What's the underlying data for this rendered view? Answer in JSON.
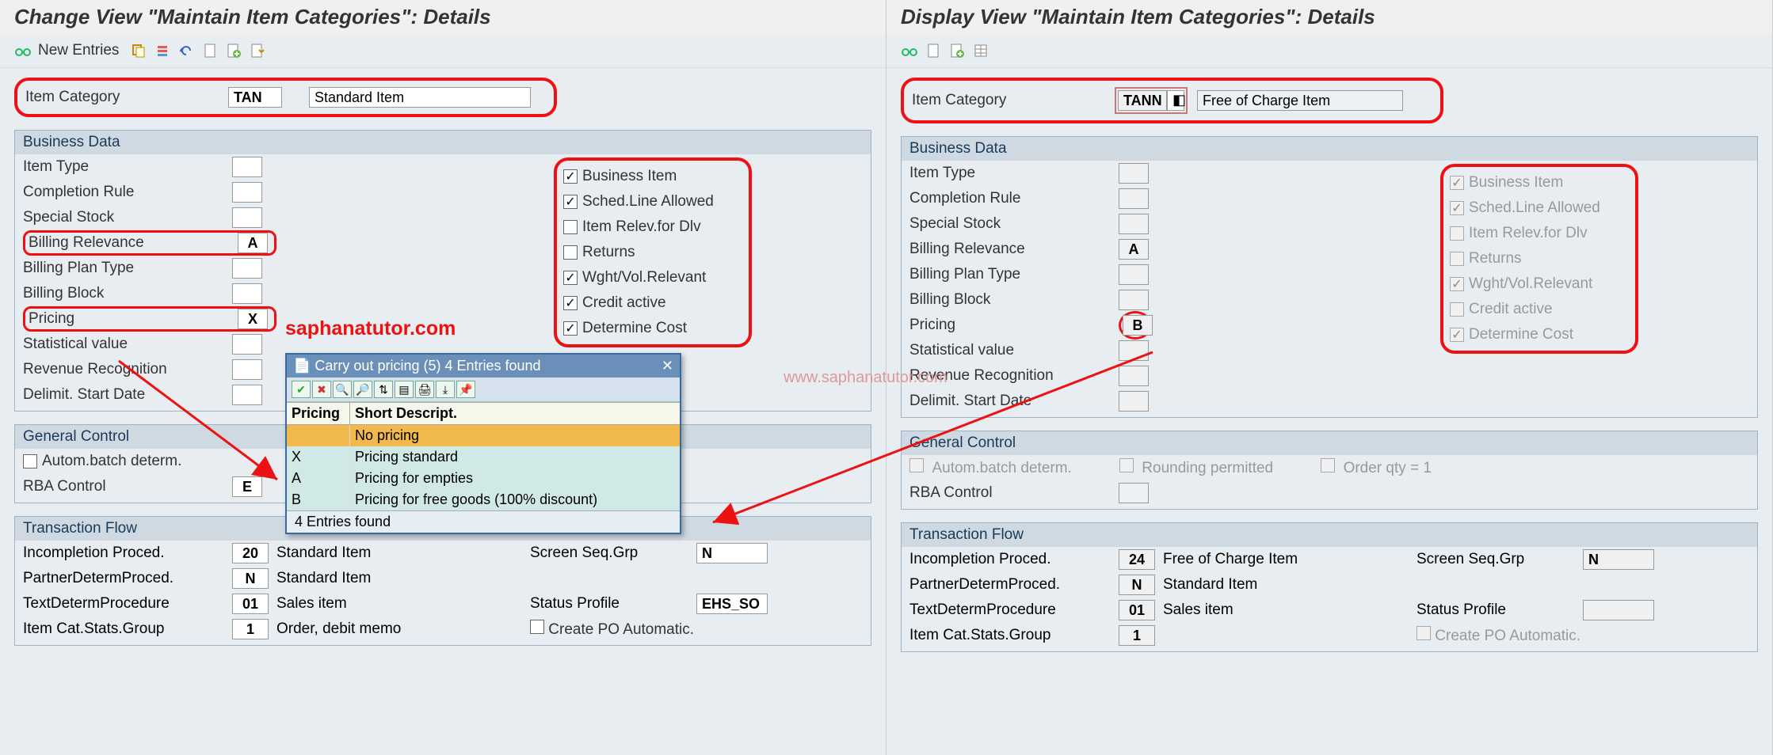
{
  "left": {
    "title": "Change View \"Maintain Item Categories\": Details",
    "toolbar": {
      "new_entries": "New Entries"
    },
    "item_category": {
      "label": "Item Category",
      "code": "TAN",
      "desc": "Standard Item"
    },
    "business_data": {
      "title": "Business Data",
      "fields": [
        {
          "label": "Item Type",
          "value": ""
        },
        {
          "label": "Completion Rule",
          "value": ""
        },
        {
          "label": "Special Stock",
          "value": ""
        },
        {
          "label": "Billing Relevance",
          "value": "A"
        },
        {
          "label": "Billing Plan Type",
          "value": ""
        },
        {
          "label": "Billing Block",
          "value": ""
        },
        {
          "label": "Pricing",
          "value": "X"
        },
        {
          "label": "Statistical value",
          "value": ""
        },
        {
          "label": "Revenue Recognition",
          "value": ""
        },
        {
          "label": "Delimit. Start Date",
          "value": ""
        }
      ],
      "checks": [
        {
          "label": "Business Item",
          "checked": true
        },
        {
          "label": "Sched.Line Allowed",
          "checked": true
        },
        {
          "label": "Item Relev.for Dlv",
          "checked": false
        },
        {
          "label": "Returns",
          "checked": false
        },
        {
          "label": "Wght/Vol.Relevant",
          "checked": true
        },
        {
          "label": "Credit active",
          "checked": true
        },
        {
          "label": "Determine Cost",
          "checked": true
        }
      ]
    },
    "general_control": {
      "title": "General Control",
      "autobatch": "Autom.batch determ.",
      "rba_label": "RBA Control",
      "rba_value": "E"
    },
    "transaction_flow": {
      "title": "Transaction Flow",
      "rows": [
        {
          "l": "Incompletion Proced.",
          "v": "20",
          "d": "Standard Item",
          "r": "Screen Seq.Grp",
          "rv": "N"
        },
        {
          "l": "PartnerDetermProced.",
          "v": "N",
          "d": "Standard Item",
          "r": "",
          "rv": ""
        },
        {
          "l": "TextDetermProcedure",
          "v": "01",
          "d": "Sales item",
          "r": "Status Profile",
          "rv": "EHS_SO"
        },
        {
          "l": "Item Cat.Stats.Group",
          "v": "1",
          "d": "Order, debit memo",
          "r": "Create PO Automatic.",
          "rv": "",
          "check": true
        }
      ]
    },
    "popup": {
      "title": "Carry out pricing (5)   4 Entries found",
      "footer": "4 Entries found",
      "header": {
        "c1": "Pricing",
        "c2": "Short Descript."
      },
      "rows": [
        {
          "k": "",
          "d": "No pricing",
          "sel": true
        },
        {
          "k": "X",
          "d": "Pricing standard"
        },
        {
          "k": "A",
          "d": "Pricing for empties"
        },
        {
          "k": "B",
          "d": "Pricing for free goods (100% discount)"
        }
      ]
    },
    "watermark": "saphanatutor.com"
  },
  "right": {
    "title": "Display View \"Maintain Item Categories\": Details",
    "item_category": {
      "label": "Item Category",
      "code": "TANN",
      "desc": "Free of Charge Item"
    },
    "business_data": {
      "title": "Business Data",
      "fields": [
        {
          "label": "Item Type",
          "value": ""
        },
        {
          "label": "Completion Rule",
          "value": ""
        },
        {
          "label": "Special Stock",
          "value": ""
        },
        {
          "label": "Billing Relevance",
          "value": "A"
        },
        {
          "label": "Billing Plan Type",
          "value": ""
        },
        {
          "label": "Billing Block",
          "value": ""
        },
        {
          "label": "Pricing",
          "value": "B"
        },
        {
          "label": "Statistical value",
          "value": ""
        },
        {
          "label": "Revenue Recognition",
          "value": ""
        },
        {
          "label": "Delimit. Start Date",
          "value": ""
        }
      ],
      "checks": [
        {
          "label": "Business Item",
          "checked": true,
          "dis": true
        },
        {
          "label": "Sched.Line Allowed",
          "checked": true,
          "dis": true
        },
        {
          "label": "Item Relev.for Dlv",
          "checked": false,
          "dis": true
        },
        {
          "label": "Returns",
          "checked": false,
          "dis": true
        },
        {
          "label": "Wght/Vol.Relevant",
          "checked": true,
          "dis": true
        },
        {
          "label": "Credit active",
          "checked": false,
          "dis": true
        },
        {
          "label": "Determine Cost",
          "checked": true,
          "dis": true
        }
      ]
    },
    "general_control": {
      "title": "General Control",
      "autobatch": "Autom.batch determ.",
      "rounding": "Rounding permitted",
      "orderqty": "Order qty = 1",
      "rba_label": "RBA Control",
      "rba_value": ""
    },
    "transaction_flow": {
      "title": "Transaction Flow",
      "rows": [
        {
          "l": "Incompletion Proced.",
          "v": "24",
          "d": "Free of Charge Item",
          "r": "Screen Seq.Grp",
          "rv": "N"
        },
        {
          "l": "PartnerDetermProced.",
          "v": "N",
          "d": "Standard Item",
          "r": "",
          "rv": ""
        },
        {
          "l": "TextDetermProcedure",
          "v": "01",
          "d": "Sales item",
          "r": "Status Profile",
          "rv": ""
        },
        {
          "l": "Item Cat.Stats.Group",
          "v": "1",
          "d": "",
          "r": "Create PO Automatic.",
          "rv": "",
          "check": true,
          "dis": true
        }
      ]
    },
    "watermark": "www.saphanatutor.com"
  },
  "colors": {
    "highlight": "#e11",
    "panel_bg": "#e8edf1",
    "group_header": "#cfd9e2"
  }
}
